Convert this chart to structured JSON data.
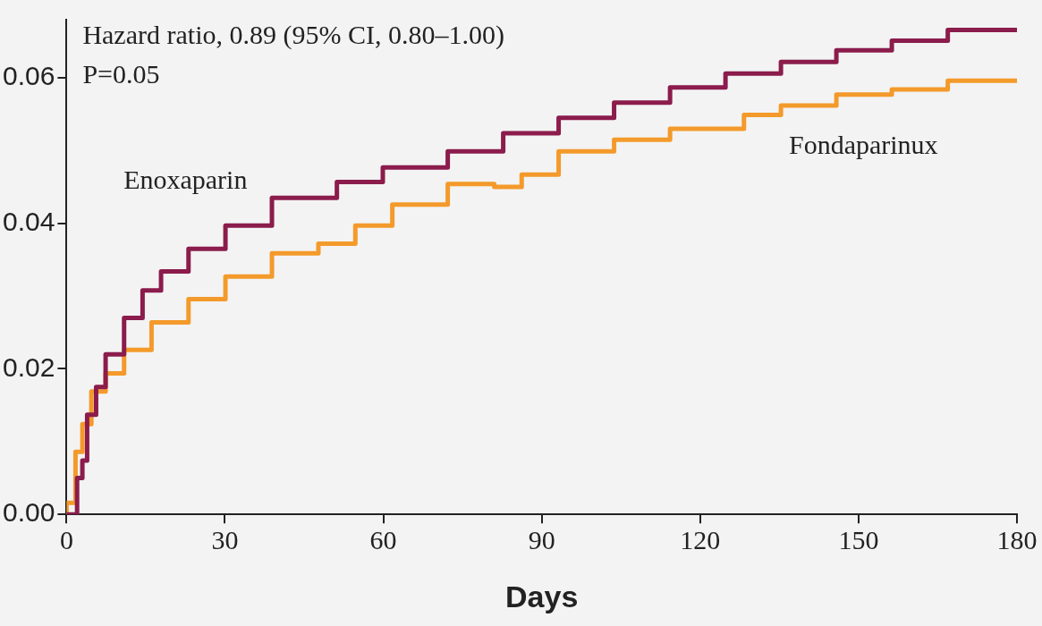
{
  "chart_data": {
    "type": "step",
    "xlabel": "Days",
    "annotations": [
      "Hazard ratio, 0.89 (95% CI, 0.80–1.00)",
      "P=0.05"
    ],
    "xlim": [
      0,
      180
    ],
    "xticks": [
      0,
      30,
      60,
      90,
      120,
      150,
      180
    ],
    "ylim": [
      0,
      0.068
    ],
    "yticks": [
      {
        "value": 0,
        "label": "0.00"
      },
      {
        "value": 0.02,
        "label": "0.02"
      },
      {
        "value": 0.04,
        "label": "0.04"
      },
      {
        "value": 0.06,
        "label": "0.06"
      }
    ],
    "grid": false,
    "legend": false,
    "marker": "none",
    "line_style": "solid",
    "series": [
      {
        "name": "Enoxaparin",
        "color": "#8b1c4c",
        "x": [
          0,
          2,
          3,
          3.9,
          5.6,
          7.4,
          10.9,
          14.4,
          17.9,
          23.1,
          30.1,
          38.9,
          51.2,
          59.9,
          72.2,
          82.7,
          93.2,
          103.7,
          114.3,
          124.8,
          135.3,
          145.8,
          156.3,
          166.9,
          180
        ],
        "values": [
          0,
          0,
          0.005,
          0.0074,
          0.0137,
          0.0175,
          0.022,
          0.027,
          0.0308,
          0.0334,
          0.0365,
          0.0397,
          0.0435,
          0.0457,
          0.0477,
          0.0499,
          0.0524,
          0.0545,
          0.0566,
          0.0587,
          0.0606,
          0.0622,
          0.0638,
          0.0651,
          0.0666
        ]
      },
      {
        "name": "Fondaparinux",
        "color": "#f39a2b",
        "x": [
          0,
          1.7,
          3,
          4.7,
          7.4,
          10.9,
          16.1,
          23.1,
          30.1,
          38.9,
          47.7,
          54.7,
          61.7,
          72.2,
          81,
          86.2,
          93.2,
          103.7,
          114.3,
          128.3,
          135.3,
          145.8,
          156.3,
          166.9,
          180
        ],
        "values": [
          0,
          0.0016,
          0.0086,
          0.0124,
          0.0169,
          0.0194,
          0.0226,
          0.0264,
          0.0296,
          0.0327,
          0.0359,
          0.0372,
          0.0397,
          0.0426,
          0.0454,
          0.045,
          0.0467,
          0.0499,
          0.0515,
          0.053,
          0.0549,
          0.0562,
          0.0577,
          0.0584,
          0.0596
        ]
      }
    ]
  }
}
